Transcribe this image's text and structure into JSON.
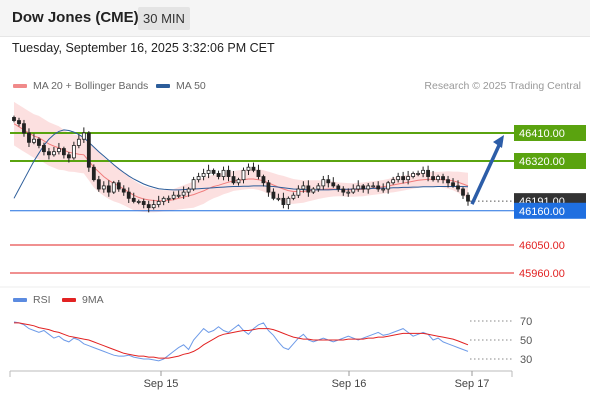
{
  "header": {
    "title": "Dow Jones (CME)",
    "timeframe": "30 MIN"
  },
  "datetime": "Tuesday, September 16, 2025 3:32:06 PM CET",
  "legend": {
    "price": [
      {
        "label": "MA 20 + Bollinger Bands",
        "color": "#f07c7c"
      },
      {
        "label": "MA 50",
        "color": "#2c5d9a"
      }
    ],
    "rsi": [
      {
        "label": "RSI",
        "color": "#5b8be0"
      },
      {
        "label": "9MA",
        "color": "#e22222"
      }
    ]
  },
  "research_label": "Research © 2025 Trading Central",
  "colors": {
    "resistance": "#5aa30f",
    "support": "#1f6fe0",
    "target": "#e22222",
    "current": "#333333",
    "arrow": "#2c5da8"
  },
  "chart_data": [
    {
      "type": "candlestick",
      "x_ticks": [
        "Sep 15",
        "Sep 16",
        "Sep 17"
      ],
      "price_levels": [
        {
          "value": 46410.0,
          "label": "46410.00",
          "kind": "resistance"
        },
        {
          "value": 46320.0,
          "label": "46320.00",
          "kind": "resistance"
        },
        {
          "value": 46191.0,
          "label": "46191.00",
          "kind": "current"
        },
        {
          "value": 46160.0,
          "label": "46160.00",
          "kind": "support"
        },
        {
          "value": 46050.0,
          "label": "46050.00",
          "kind": "target"
        },
        {
          "value": 45960.0,
          "label": "45960.00",
          "kind": "target"
        }
      ],
      "close_series": [
        46450,
        46440,
        46410,
        46380,
        46390,
        46370,
        46350,
        46340,
        46350,
        46360,
        46340,
        46330,
        46370,
        46390,
        46410,
        46300,
        46260,
        46230,
        46240,
        46220,
        46250,
        46230,
        46220,
        46200,
        46190,
        46190,
        46180,
        46170,
        46180,
        46190,
        46200,
        46200,
        46210,
        46210,
        46220,
        46230,
        46260,
        46270,
        46280,
        46290,
        46280,
        46270,
        46290,
        46270,
        46250,
        46260,
        46290,
        46300,
        46290,
        46270,
        46250,
        46220,
        46200,
        46200,
        46180,
        46200,
        46210,
        46230,
        46240,
        46220,
        46230,
        46240,
        46260,
        46250,
        46240,
        46230,
        46220,
        46220,
        46230,
        46240,
        46230,
        46240,
        46240,
        46230,
        46230,
        46250,
        46260,
        46270,
        46260,
        46270,
        46280,
        46280,
        46290,
        46270,
        46260,
        46270,
        46260,
        46250,
        46240,
        46230,
        46210,
        46191
      ],
      "ma20": [
        46440,
        46430,
        46420,
        46410,
        46400,
        46395,
        46385,
        46375,
        46368,
        46362,
        46355,
        46348,
        46345,
        46342,
        46340,
        46320,
        46300,
        46285,
        46270,
        46258,
        46248,
        46240,
        46230,
        46220,
        46210,
        46203,
        46198,
        46195,
        46193,
        46192,
        46192,
        46193,
        46196,
        46200,
        46204,
        46208,
        46212,
        46218,
        46224,
        46232,
        46238,
        46242,
        46247,
        46252,
        46256,
        46258,
        46260,
        46262,
        46262,
        46260,
        46256,
        46250,
        46243,
        46236,
        46230,
        46225,
        46222,
        46222,
        46222,
        46224,
        46226,
        46228,
        46229,
        46230,
        46230,
        46229,
        46228,
        46227,
        46227,
        46228,
        46229,
        46231,
        46233,
        46235,
        46237,
        46240,
        46243,
        46246,
        46249,
        46252,
        46255,
        46258,
        46260,
        46261,
        46261,
        46261,
        46260,
        46259,
        46256,
        46252,
        46246,
        46240
      ],
      "ma50": [
        46200,
        46230,
        46260,
        46290,
        46320,
        46345,
        46370,
        46390,
        46405,
        46415,
        46420,
        46418,
        46413,
        46405,
        46395,
        46380,
        46365,
        46350,
        46336,
        46322,
        46308,
        46295,
        46283,
        46272,
        46262,
        46254,
        46246,
        46240,
        46235,
        46231,
        46229,
        46228,
        46227,
        46227,
        46228,
        46229,
        46230,
        46231,
        46232,
        46233,
        46234,
        46235,
        46236,
        46237,
        46238,
        46238,
        46239,
        46239,
        46240,
        46240,
        46240,
        46239,
        46238,
        46236,
        46234,
        46232,
        46230,
        46229,
        46228,
        46227,
        46227,
        46227,
        46227,
        46227,
        46228,
        46228,
        46229,
        46229,
        46230,
        46230,
        46231,
        46231,
        46232,
        46232,
        46233,
        46233,
        46234,
        46234,
        46235,
        46235,
        46236,
        46236,
        46237,
        46237,
        46237,
        46238,
        46238,
        46238,
        46238,
        46238,
        46238,
        46237
      ],
      "forecast_arrow": {
        "from": 46191,
        "to": 46410
      }
    },
    {
      "type": "line",
      "name_hint": "RSI panel",
      "y_ticks": [
        70,
        50,
        30
      ],
      "rsi": [
        69,
        68,
        66,
        62,
        60,
        58,
        60,
        56,
        52,
        54,
        50,
        48,
        52,
        50,
        46,
        44,
        42,
        40,
        38,
        36,
        34,
        33,
        33,
        34,
        32,
        31,
        30,
        30,
        29,
        28,
        30,
        34,
        38,
        42,
        45,
        40,
        50,
        56,
        62,
        58,
        60,
        64,
        60,
        58,
        62,
        66,
        60,
        56,
        62,
        66,
        68,
        60,
        55,
        48,
        42,
        40,
        46,
        52,
        56,
        50,
        48,
        50,
        52,
        50,
        48,
        50,
        52,
        54,
        52,
        50,
        52,
        54,
        56,
        58,
        55,
        56,
        58,
        60,
        62,
        58,
        54,
        56,
        58,
        56,
        50,
        52,
        48,
        46,
        44,
        42,
        40,
        38
      ],
      "ma9": [
        68,
        68,
        67,
        66,
        65,
        63,
        62,
        61,
        59,
        58,
        56,
        54,
        53,
        52,
        51,
        50,
        48,
        46,
        44,
        42,
        40,
        38,
        36,
        35,
        34,
        33,
        33,
        32,
        32,
        31,
        31,
        31,
        32,
        33,
        35,
        36,
        38,
        41,
        45,
        48,
        51,
        54,
        56,
        57,
        58,
        59,
        60,
        60,
        61,
        62,
        62,
        62,
        61,
        59,
        57,
        55,
        53,
        52,
        51,
        51,
        50,
        50,
        50,
        50,
        50,
        50,
        50,
        51,
        51,
        51,
        51,
        52,
        52,
        53,
        53,
        54,
        55,
        56,
        57,
        57,
        57,
        57,
        57,
        56,
        55,
        54,
        53,
        52,
        51,
        49,
        47,
        45
      ]
    }
  ]
}
